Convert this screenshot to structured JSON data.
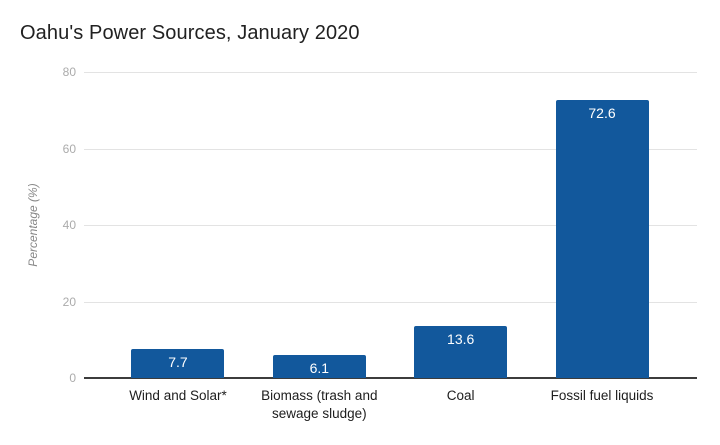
{
  "title": "Oahu's Power Sources, January 2020",
  "chart_data": {
    "type": "bar",
    "title": "Oahu's Power Sources, January 2020",
    "categories": [
      "Wind and Solar*",
      "Biomass (trash and sewage sludge)",
      "Coal",
      "Fossil fuel liquids"
    ],
    "values": [
      7.7,
      6.1,
      13.6,
      72.6
    ],
    "value_labels": [
      "7.7",
      "6.1",
      "13.6",
      "72.6"
    ],
    "xlabel": "",
    "ylabel": "Percentage (%)",
    "ylim": [
      0,
      80
    ],
    "yticks": [
      0,
      20,
      40,
      60,
      80
    ],
    "grid": true,
    "legend": "none",
    "bar_color": "#12589c",
    "value_label_color": "#ffffff",
    "gridline_color": "#e3e3e3",
    "axis_line_color": "#3c3c3c",
    "tick_label_color": "#ababab"
  }
}
